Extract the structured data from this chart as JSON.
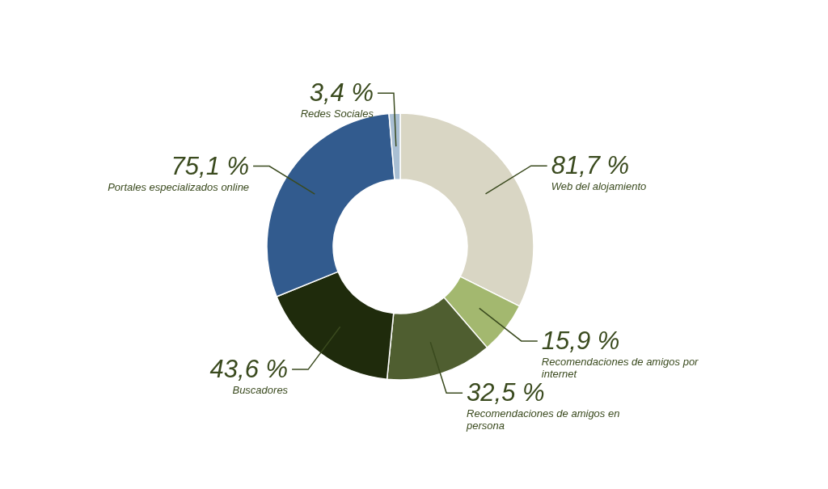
{
  "chart_data": {
    "type": "donut",
    "categories": [
      "Web del alojamiento",
      "Recomendaciones de amigos por internet",
      "Recomendaciones de amigos en persona",
      "Buscadores",
      "Portales especializados online",
      "Redes Sociales"
    ],
    "values": [
      81.7,
      15.9,
      32.5,
      43.6,
      75.1,
      3.4
    ],
    "value_labels": [
      "81,7 %",
      "15,9 %",
      "32,5 %",
      "43,6 %",
      "75,1 %",
      "3,4 %"
    ],
    "colors": [
      "#d9d6c4",
      "#a3b86f",
      "#4f5e30",
      "#1f2b0c",
      "#325b8e",
      "#a9bfd3"
    ]
  }
}
